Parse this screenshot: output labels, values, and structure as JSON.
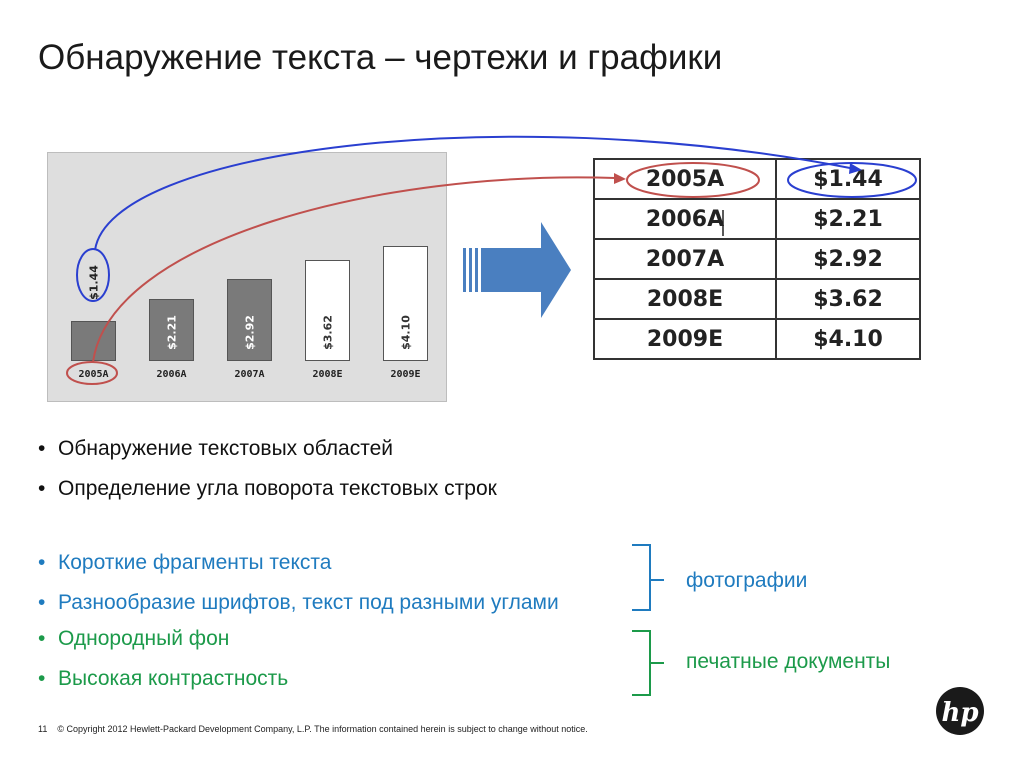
{
  "title": "Обнаружение текста – чертежи и графики",
  "chart_data": {
    "type": "bar",
    "categories": [
      "2005A",
      "2006A",
      "2007A",
      "2008E",
      "2009E"
    ],
    "values": [
      1.44,
      2.21,
      2.92,
      3.62,
      4.1
    ],
    "value_labels": [
      "$1.44",
      "$2.21",
      "$2.92",
      "$3.62",
      "$4.10"
    ],
    "bar_colors": [
      "#7a7a7a",
      "#7a7a7a",
      "#7a7a7a",
      "#ffffff",
      "#ffffff"
    ],
    "title": "",
    "xlabel": "",
    "ylabel": ""
  },
  "table": {
    "rows": [
      [
        "2005A",
        "$1.44"
      ],
      [
        "2006A",
        "$2.21"
      ],
      [
        "2007A",
        "$2.92"
      ],
      [
        "2008E",
        "$3.62"
      ],
      [
        "2009E",
        "$4.10"
      ]
    ]
  },
  "bullets": [
    {
      "text": "Обнаружение текстовых областей",
      "color": "#111111"
    },
    {
      "text": "Определение угла поворота текстовых строк",
      "color": "#111111"
    },
    {
      "text": "Короткие фрагменты текста",
      "color": "#1f7bbf"
    },
    {
      "text": "Разнообразие шрифтов, текст под разными углами",
      "color": "#1f7bbf"
    },
    {
      "text": "Однородный фон",
      "color": "#1c9a4a"
    },
    {
      "text": "Высокая контрастность",
      "color": "#1c9a4a"
    }
  ],
  "bullet_symbol": "•",
  "labels": {
    "photos": "фотографии",
    "printed": "печатные документы"
  },
  "colors": {
    "accent_blue": "#1f7bbf",
    "accent_green": "#1c9a4a",
    "arrow_blue": "#4a7fc0",
    "curve_blue": "#2a3fd0",
    "curve_red": "#c0504d"
  },
  "footer": {
    "page_number": "11",
    "copyright": "© Copyright 2012 Hewlett-Packard Development Company, L.P.  The information contained herein is subject to change without notice."
  },
  "logo": {
    "text": "hp"
  }
}
